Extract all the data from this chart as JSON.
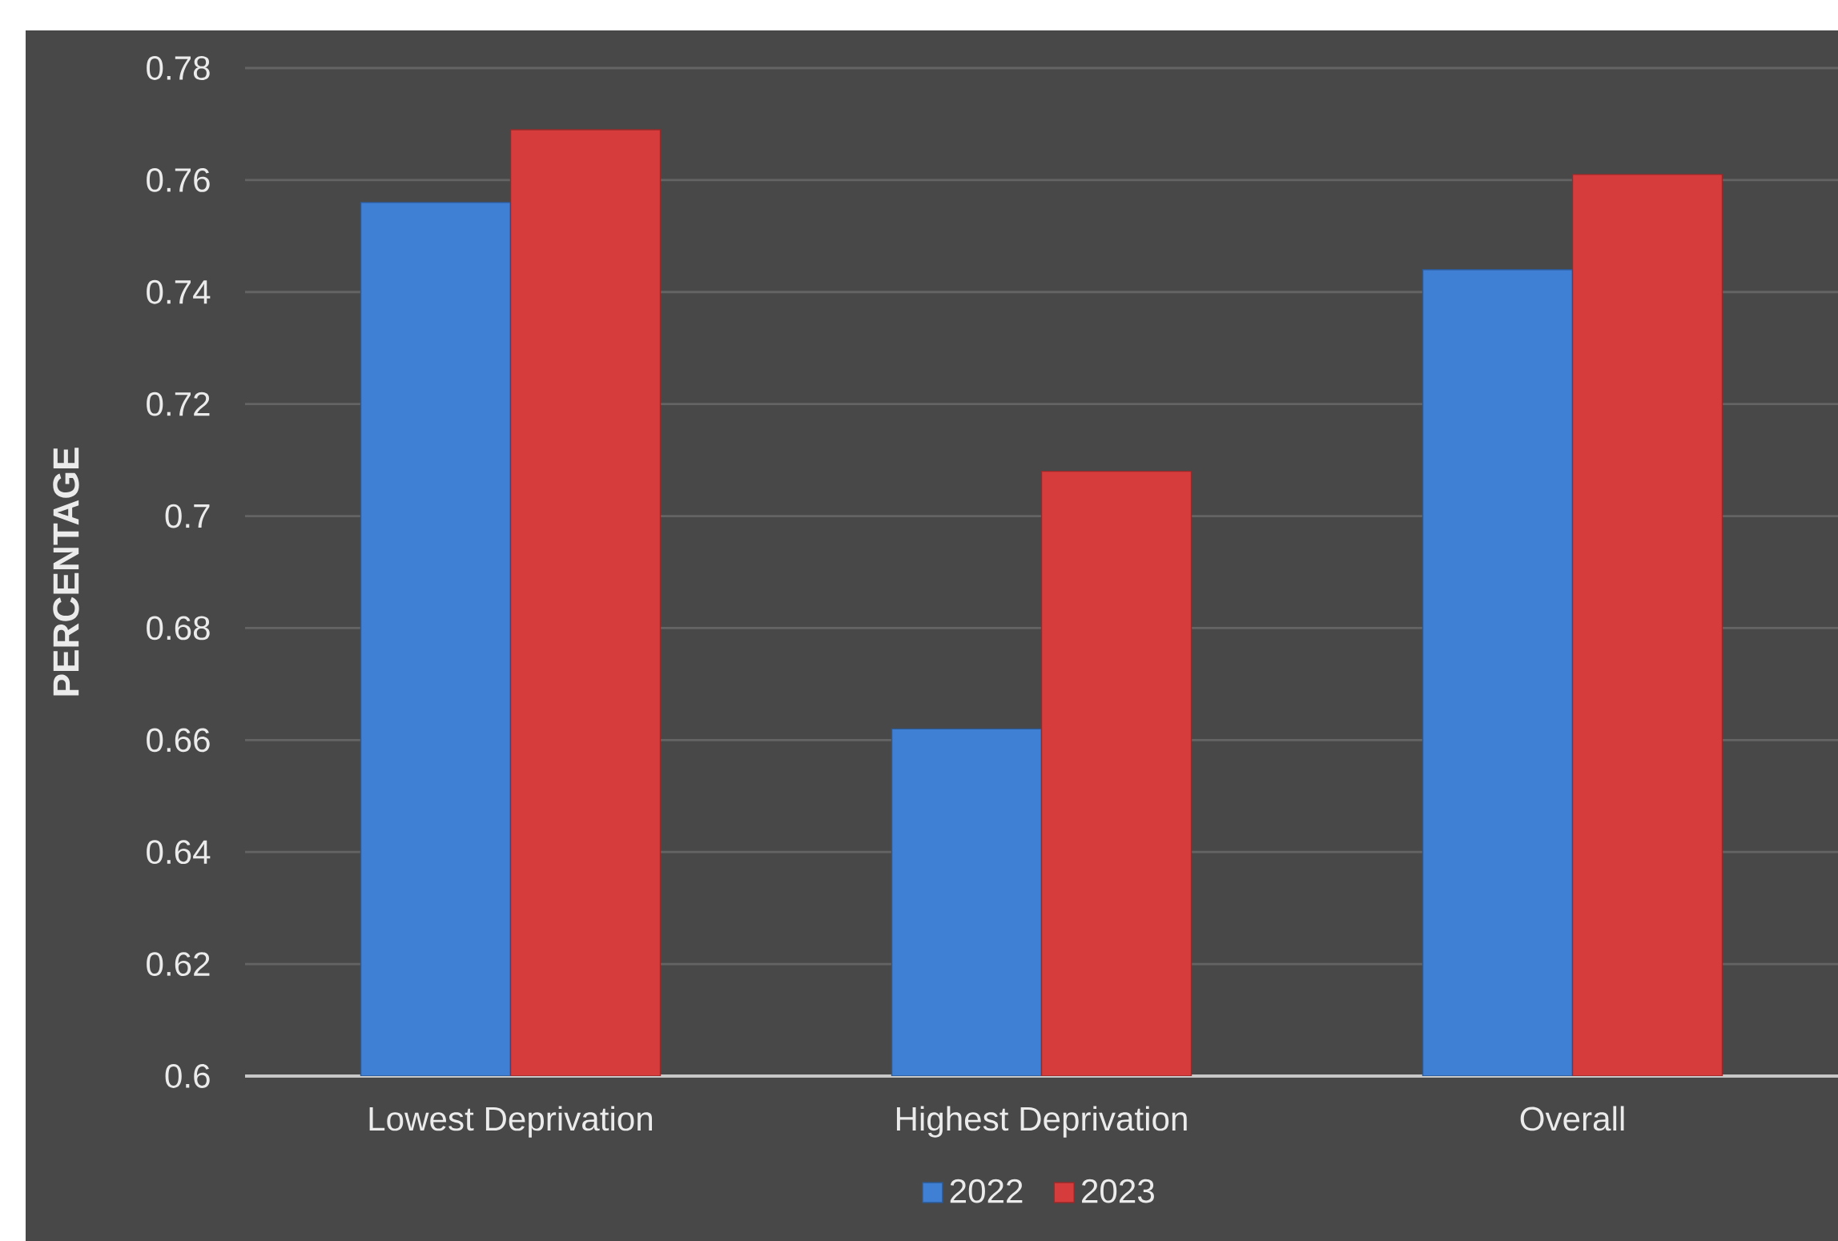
{
  "chart_data": {
    "type": "bar",
    "ylabel": "PERCENTAGE",
    "categories": [
      "Lowest Deprivation",
      "Highest Deprivation",
      "Overall"
    ],
    "series": [
      {
        "name": "2022",
        "color": "#3f7fd4",
        "values": [
          0.756,
          0.662,
          0.744
        ]
      },
      {
        "name": "2023",
        "color": "#d63c3c",
        "values": [
          0.769,
          0.708,
          0.761
        ]
      }
    ],
    "ylim": [
      0.6,
      0.78
    ],
    "yticks": [
      0.6,
      0.62,
      0.64,
      0.66,
      0.68,
      0.7,
      0.72,
      0.74,
      0.76,
      0.78
    ],
    "grid": "y",
    "legend": "bottom"
  }
}
